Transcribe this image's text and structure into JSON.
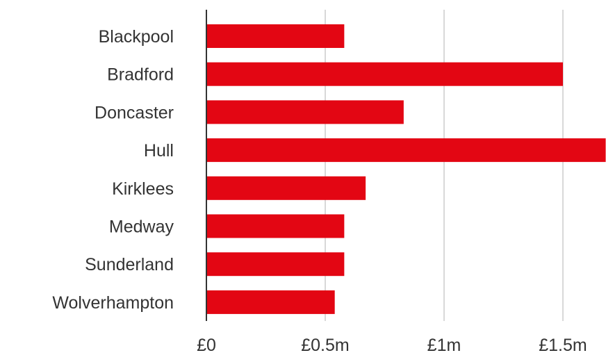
{
  "chart_data": {
    "type": "bar",
    "orientation": "horizontal",
    "title": "",
    "xlabel": "",
    "ylabel": "",
    "categories": [
      "Blackpool",
      "Bradford",
      "Doncaster",
      "Hull",
      "Kirklees",
      "Medway",
      "Sunderland",
      "Wolverhampton"
    ],
    "values": [
      0.58,
      1.5,
      0.83,
      1.68,
      0.67,
      0.58,
      0.58,
      0.54
    ],
    "unit": "£m",
    "xlim": [
      0,
      1.68
    ],
    "ticks": [
      {
        "value": 0,
        "label": "£0"
      },
      {
        "value": 0.5,
        "label": "£0.5m"
      },
      {
        "value": 1,
        "label": "£1m"
      },
      {
        "value": 1.5,
        "label": "£1.5m"
      }
    ],
    "grid": "vertical",
    "legend": "none",
    "bar_color": "#e30613",
    "grid_color": "#cccccc",
    "axis_color": "#333333"
  }
}
